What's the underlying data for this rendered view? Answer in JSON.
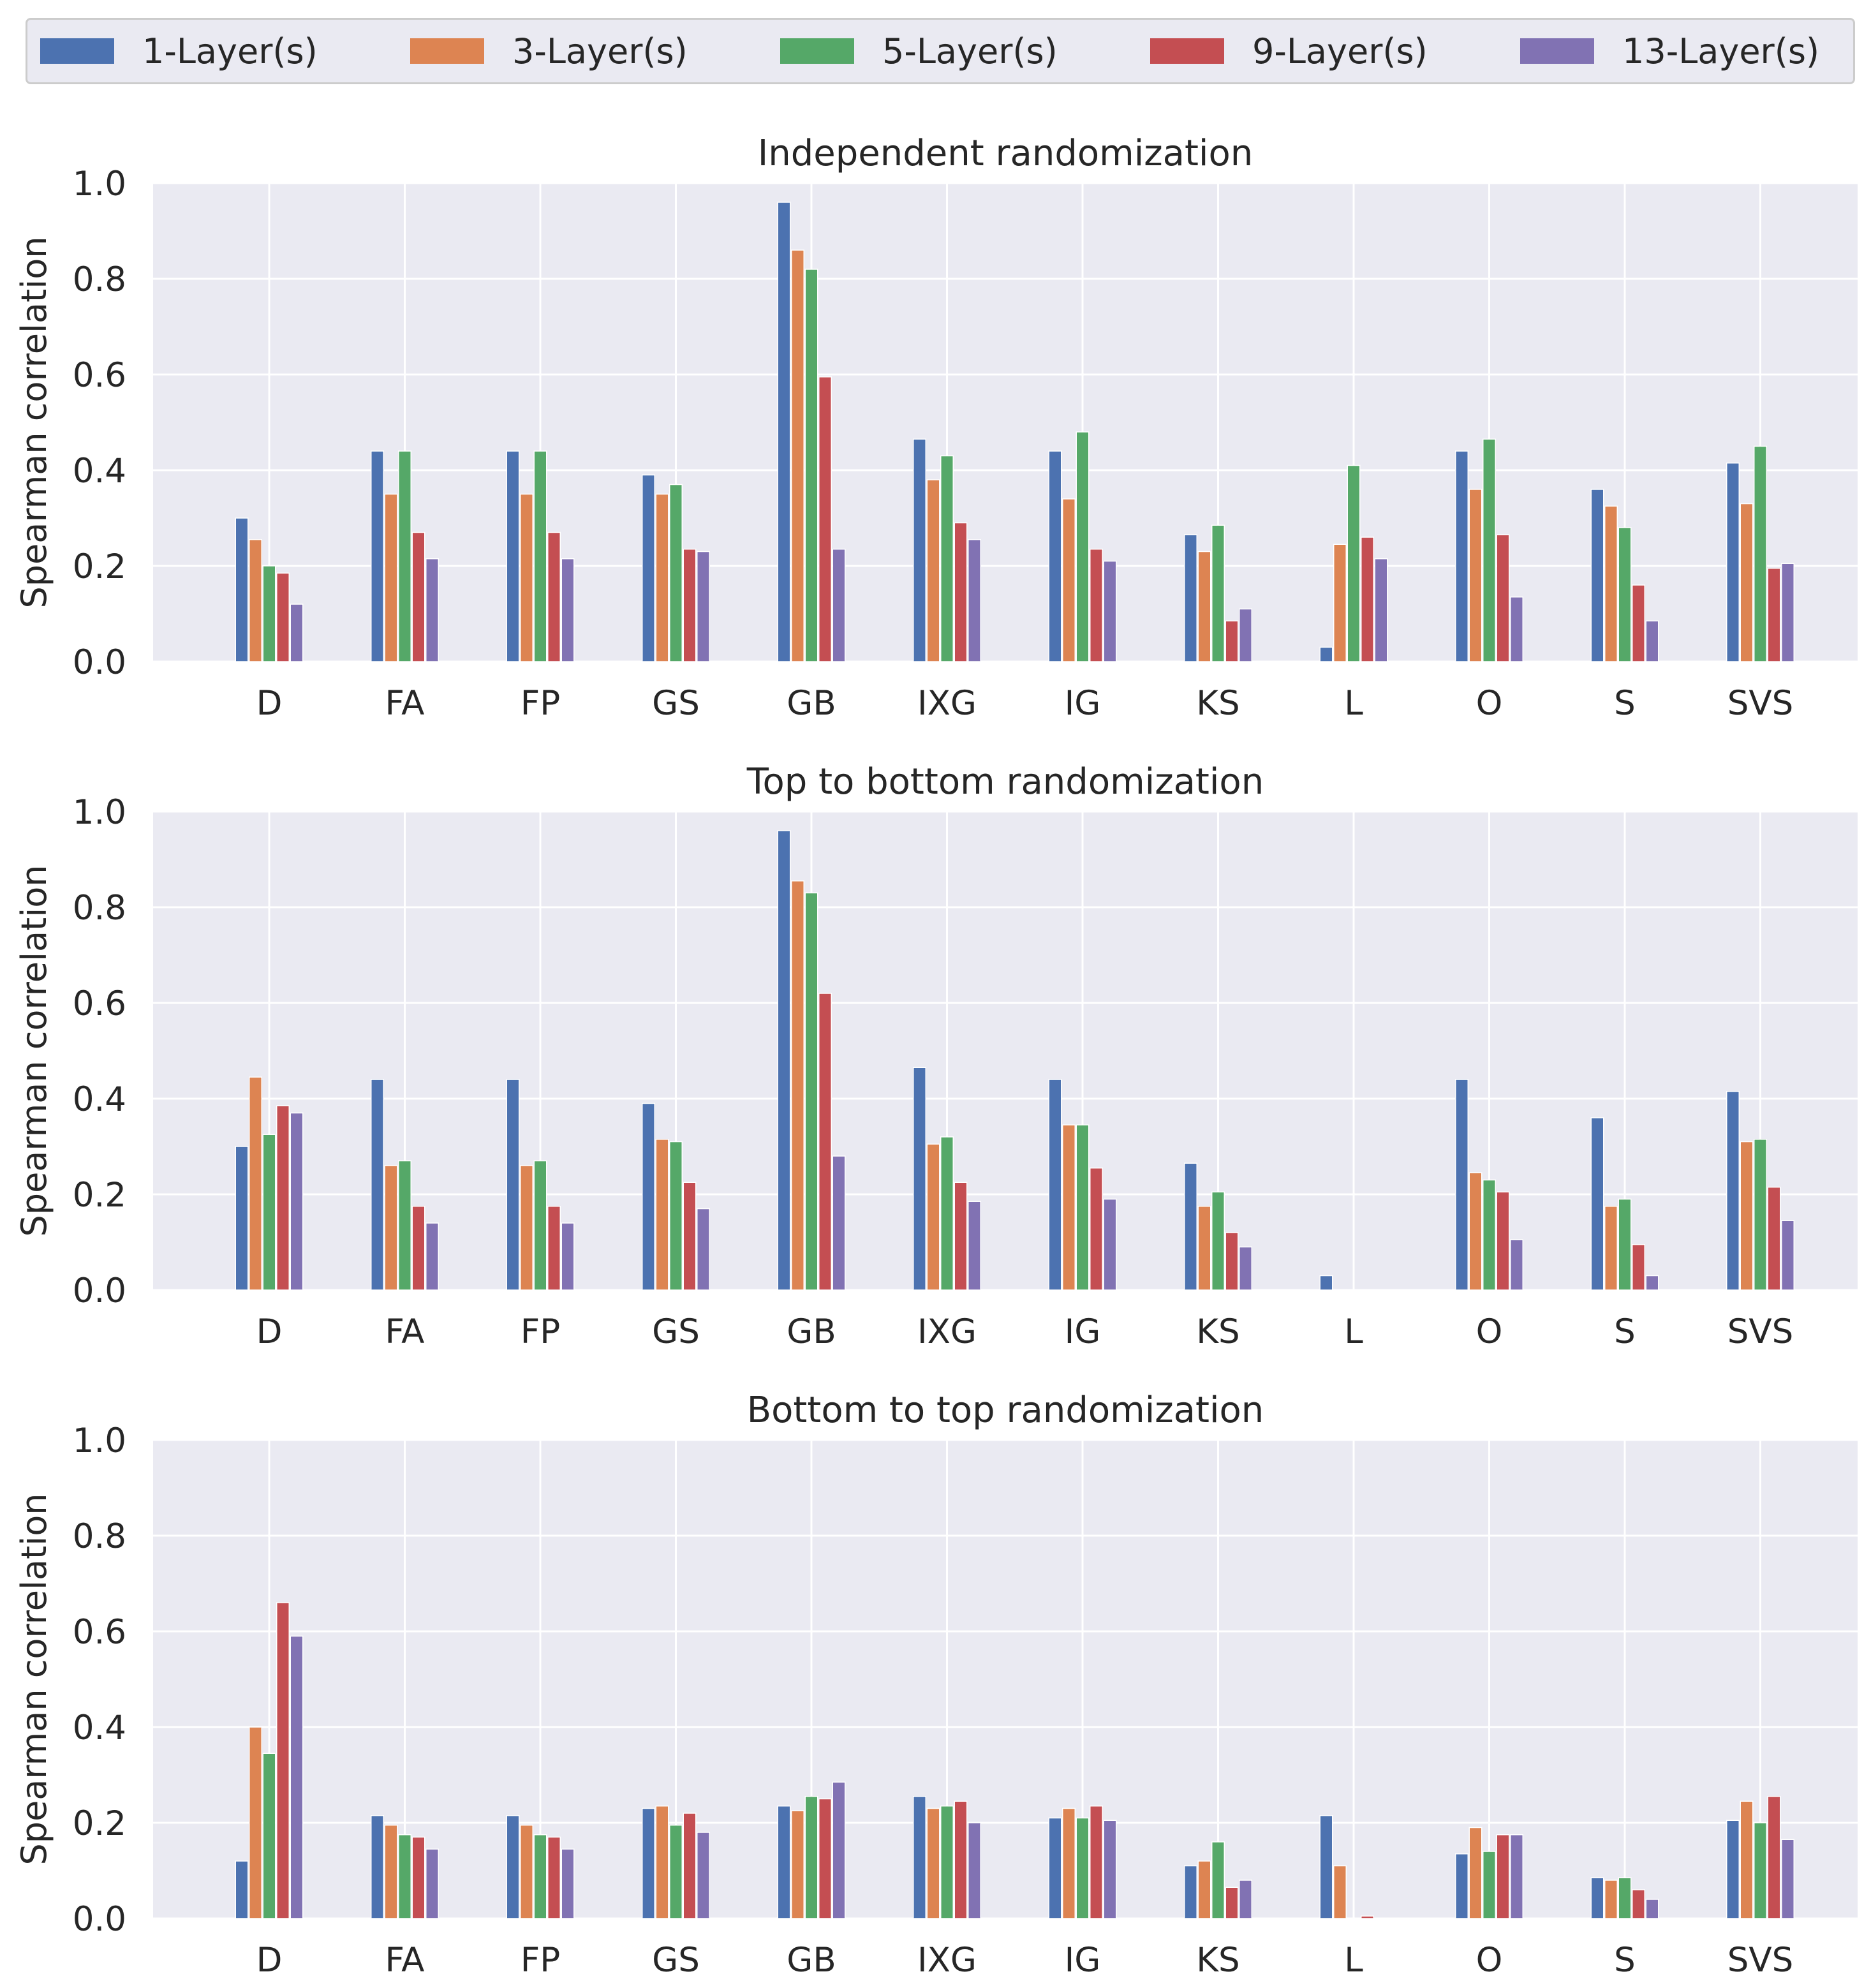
{
  "legend": {
    "items": [
      {
        "label": "1-Layer(s)",
        "color": "#4c72b0"
      },
      {
        "label": "3-Layer(s)",
        "color": "#dd8452"
      },
      {
        "label": "5-Layer(s)",
        "color": "#55a868"
      },
      {
        "label": "9-Layer(s)",
        "color": "#c44e52"
      },
      {
        "label": "13-Layer(s)",
        "color": "#8172b3"
      }
    ]
  },
  "chart_data": [
    {
      "type": "bar",
      "title": "Independent randomization",
      "xlabel": "",
      "ylabel": "Spearman correlation",
      "ylim": [
        0,
        1.0
      ],
      "yticks": [
        "0.0",
        "0.2",
        "0.4",
        "0.6",
        "0.8",
        "1.0"
      ],
      "grid": true,
      "categories": [
        "D",
        "FA",
        "FP",
        "GS",
        "GB",
        "IXG",
        "IG",
        "KS",
        "L",
        "O",
        "S",
        "SVS"
      ],
      "series": [
        {
          "name": "1-Layer(s)",
          "values": [
            0.3,
            0.44,
            0.44,
            0.39,
            0.96,
            0.465,
            0.44,
            0.265,
            0.03,
            0.44,
            0.36,
            0.415
          ]
        },
        {
          "name": "3-Layer(s)",
          "values": [
            0.255,
            0.35,
            0.35,
            0.35,
            0.86,
            0.38,
            0.34,
            0.23,
            0.245,
            0.36,
            0.325,
            0.33
          ]
        },
        {
          "name": "5-Layer(s)",
          "values": [
            0.2,
            0.44,
            0.44,
            0.37,
            0.82,
            0.43,
            0.48,
            0.285,
            0.41,
            0.465,
            0.28,
            0.45
          ]
        },
        {
          "name": "9-Layer(s)",
          "values": [
            0.185,
            0.27,
            0.27,
            0.235,
            0.595,
            0.29,
            0.235,
            0.085,
            0.26,
            0.265,
            0.16,
            0.195
          ]
        },
        {
          "name": "13-Layer(s)",
          "values": [
            0.12,
            0.215,
            0.215,
            0.23,
            0.235,
            0.255,
            0.21,
            0.11,
            0.215,
            0.135,
            0.085,
            0.205
          ]
        }
      ]
    },
    {
      "type": "bar",
      "title": "Top to bottom randomization",
      "xlabel": "",
      "ylabel": "Spearman correlation",
      "ylim": [
        0,
        1.0
      ],
      "yticks": [
        "0.0",
        "0.2",
        "0.4",
        "0.6",
        "0.8",
        "1.0"
      ],
      "grid": true,
      "categories": [
        "D",
        "FA",
        "FP",
        "GS",
        "GB",
        "IXG",
        "IG",
        "KS",
        "L",
        "O",
        "S",
        "SVS"
      ],
      "series": [
        {
          "name": "1-Layer(s)",
          "values": [
            0.3,
            0.44,
            0.44,
            0.39,
            0.96,
            0.465,
            0.44,
            0.265,
            0.03,
            0.44,
            0.36,
            0.415
          ]
        },
        {
          "name": "3-Layer(s)",
          "values": [
            0.445,
            0.26,
            0.26,
            0.315,
            0.855,
            0.305,
            0.345,
            0.175,
            0.0,
            0.245,
            0.175,
            0.31
          ]
        },
        {
          "name": "5-Layer(s)",
          "values": [
            0.325,
            0.27,
            0.27,
            0.31,
            0.83,
            0.32,
            0.345,
            0.205,
            0.0,
            0.23,
            0.19,
            0.315
          ]
        },
        {
          "name": "9-Layer(s)",
          "values": [
            0.385,
            0.175,
            0.175,
            0.225,
            0.62,
            0.225,
            0.255,
            0.12,
            0.0,
            0.205,
            0.095,
            0.215
          ]
        },
        {
          "name": "13-Layer(s)",
          "values": [
            0.37,
            0.14,
            0.14,
            0.17,
            0.28,
            0.185,
            0.19,
            0.09,
            0.0,
            0.105,
            0.03,
            0.145
          ]
        }
      ]
    },
    {
      "type": "bar",
      "title": "Bottom to top randomization",
      "xlabel": "",
      "ylabel": "Spearman correlation",
      "ylim": [
        0,
        1.0
      ],
      "yticks": [
        "0.0",
        "0.2",
        "0.4",
        "0.6",
        "0.8",
        "1.0"
      ],
      "grid": true,
      "categories": [
        "D",
        "FA",
        "FP",
        "GS",
        "GB",
        "IXG",
        "IG",
        "KS",
        "L",
        "O",
        "S",
        "SVS"
      ],
      "series": [
        {
          "name": "1-Layer(s)",
          "values": [
            0.12,
            0.215,
            0.215,
            0.23,
            0.235,
            0.255,
            0.21,
            0.11,
            0.215,
            0.135,
            0.085,
            0.205
          ]
        },
        {
          "name": "3-Layer(s)",
          "values": [
            0.4,
            0.195,
            0.195,
            0.235,
            0.225,
            0.23,
            0.23,
            0.12,
            0.11,
            0.19,
            0.08,
            0.245
          ]
        },
        {
          "name": "5-Layer(s)",
          "values": [
            0.345,
            0.175,
            0.175,
            0.195,
            0.255,
            0.235,
            0.21,
            0.16,
            0.0,
            0.14,
            0.085,
            0.2
          ]
        },
        {
          "name": "9-Layer(s)",
          "values": [
            0.66,
            0.17,
            0.17,
            0.22,
            0.25,
            0.245,
            0.235,
            0.065,
            0.005,
            0.175,
            0.06,
            0.255
          ]
        },
        {
          "name": "13-Layer(s)",
          "values": [
            0.59,
            0.145,
            0.145,
            0.18,
            0.285,
            0.2,
            0.205,
            0.08,
            0.0,
            0.175,
            0.04,
            0.165
          ]
        }
      ]
    }
  ]
}
